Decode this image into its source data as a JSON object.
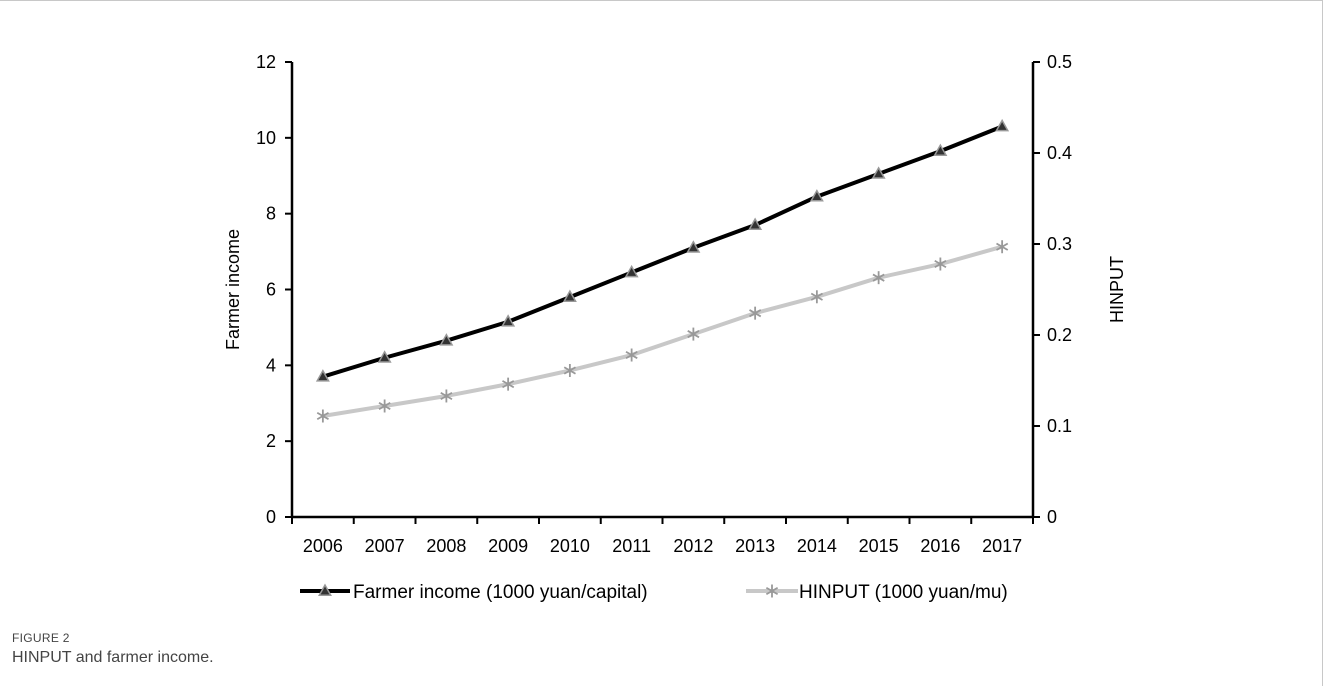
{
  "figure": {
    "label": "FIGURE 2",
    "caption": "HINPUT and farmer income."
  },
  "chart_data": {
    "type": "line",
    "categories": [
      "2006",
      "2007",
      "2008",
      "2009",
      "2010",
      "2011",
      "2012",
      "2013",
      "2014",
      "2015",
      "2016",
      "2017"
    ],
    "ylabel_left": "Farmer income",
    "ylabel_right": "HINPUT",
    "ylim_left": [
      0,
      12
    ],
    "yticks_left": [
      0,
      2,
      4,
      6,
      8,
      10,
      12
    ],
    "ylim_right": [
      0,
      0.5
    ],
    "yticks_right": [
      "0",
      "0.1",
      "0.2",
      "0.3",
      "0.4",
      "0.5"
    ],
    "grid": false,
    "legend_position": "bottom",
    "series": [
      {
        "name": "Farmer income (1000 yuan/capital)",
        "axis": "left",
        "color": "#000000",
        "marker": "triangle",
        "values": [
          3.7,
          4.2,
          4.65,
          5.15,
          5.8,
          6.45,
          7.1,
          7.7,
          8.45,
          9.05,
          9.65,
          10.3
        ]
      },
      {
        "name": "HINPUT (1000 yuan/mu)",
        "axis": "right",
        "color": "#c8c8c8",
        "marker": "star",
        "values": [
          0.111,
          0.122,
          0.133,
          0.146,
          0.161,
          0.178,
          0.201,
          0.224,
          0.242,
          0.263,
          0.278,
          0.297
        ]
      }
    ]
  }
}
